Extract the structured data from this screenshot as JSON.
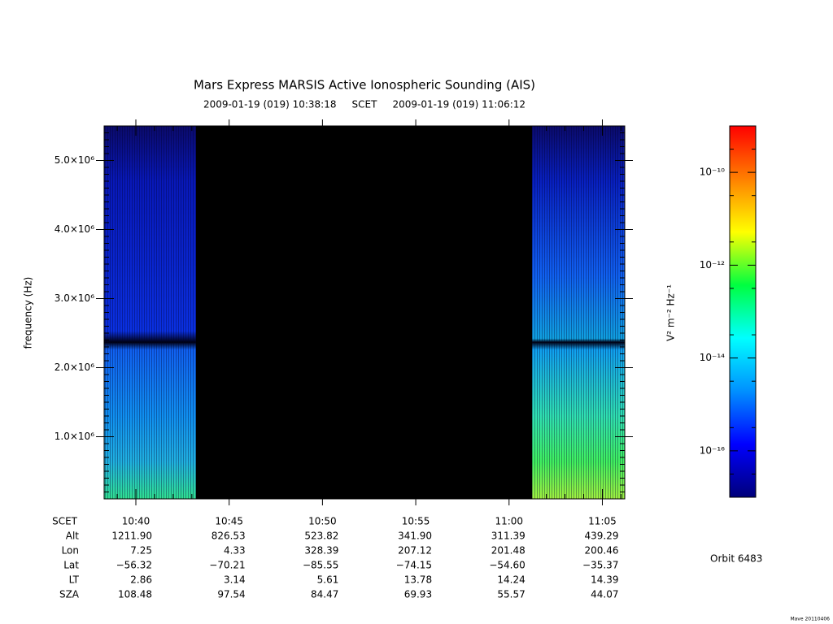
{
  "chart_data": {
    "type": "spectrogram",
    "title": "Mars Express MARSIS Active Ionospheric Sounding (AIS)",
    "subtitle": "2009-01-19 (019) 10:38:18     SCET     2009-01-19 (019) 11:06:12",
    "ylabel": "frequency (Hz)",
    "ylim": [
      100000,
      5500000
    ],
    "yticks": [
      {
        "value": 1000000,
        "label": "1.0×10⁶"
      },
      {
        "value": 2000000,
        "label": "2.0×10⁶"
      },
      {
        "value": 3000000,
        "label": "3.0×10⁶"
      },
      {
        "value": 4000000,
        "label": "4.0×10⁶"
      },
      {
        "value": 5000000,
        "label": "5.0×10⁶"
      }
    ],
    "xlabel": "SCET",
    "xlim": [
      "10:38:18",
      "11:06:12"
    ],
    "xticks": [
      "10:40",
      "10:45",
      "10:50",
      "10:55",
      "11:00",
      "11:05"
    ],
    "ephemeris": [
      {
        "name": "Alt",
        "values": [
          "1211.90",
          "826.53",
          "523.82",
          "341.90",
          "311.39",
          "439.29"
        ]
      },
      {
        "name": "Lon",
        "values": [
          "7.25",
          "4.33",
          "328.39",
          "207.12",
          "201.48",
          "200.46"
        ]
      },
      {
        "name": "Lat",
        "values": [
          "−56.32",
          "−70.21",
          "−85.55",
          "−74.15",
          "−54.60",
          "−35.37"
        ]
      },
      {
        "name": "LT",
        "values": [
          "2.86",
          "3.14",
          "5.61",
          "13.78",
          "14.24",
          "14.39"
        ]
      },
      {
        "name": "SZA",
        "values": [
          "108.48",
          "97.54",
          "84.47",
          "69.93",
          "55.57",
          "44.07"
        ]
      }
    ],
    "colorbar": {
      "label": "V² m⁻² Hz⁻¹",
      "log_scale": true,
      "zlim": [
        1e-17,
        1e-09
      ],
      "zticks": [
        {
          "value": 1e-10,
          "label": "10⁻¹⁰"
        },
        {
          "value": 1e-12,
          "label": "10⁻¹²"
        },
        {
          "value": 1e-14,
          "label": "10⁻¹⁴"
        },
        {
          "value": 1e-16,
          "label": "10⁻¹⁶"
        }
      ],
      "colormap": [
        "#00007a",
        "#0000ff",
        "#0090ff",
        "#00ffff",
        "#00ff40",
        "#ffff00",
        "#ff8000",
        "#ff0000"
      ]
    },
    "orbit": "Orbit 6483",
    "footer": "Mave 20110406"
  }
}
